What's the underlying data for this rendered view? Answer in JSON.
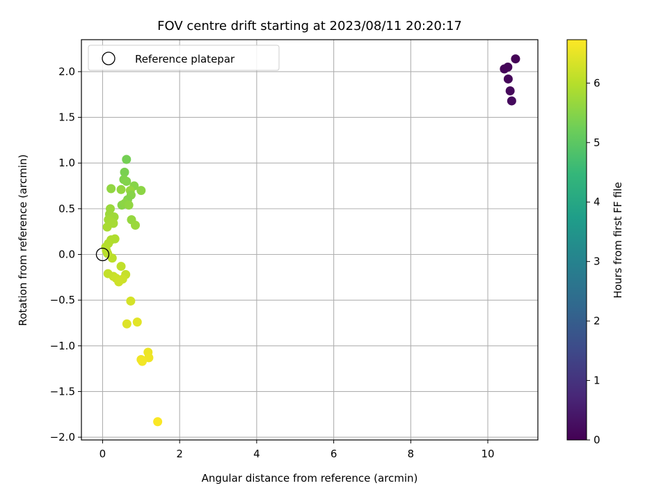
{
  "chart_data": {
    "type": "scatter",
    "title": "FOV centre drift starting at 2023/08/11 20:20:17",
    "xlabel": "Angular distance from reference (arcmin)",
    "ylabel": "Rotation from reference (arcmin)",
    "xlim": [
      -0.55,
      11.3
    ],
    "ylim": [
      -2.03,
      2.35
    ],
    "xticks": [
      0,
      2,
      4,
      6,
      8,
      10
    ],
    "yticks": [
      -2.0,
      -1.5,
      -1.0,
      -0.5,
      0.0,
      0.5,
      1.0,
      1.5,
      2.0
    ],
    "xtick_labels": [
      "0",
      "2",
      "4",
      "6",
      "8",
      "10"
    ],
    "ytick_labels": [
      "−2.0",
      "−1.5",
      "−1.0",
      "−0.5",
      "0.0",
      "0.5",
      "1.0",
      "1.5",
      "2.0"
    ],
    "grid": true,
    "legend": {
      "position": "top-left",
      "label": "Reference platepar"
    },
    "reference_point": {
      "x": 0,
      "y": 0
    },
    "colorbar": {
      "label": "Hours from first FF file",
      "min": 0,
      "max": 6.73,
      "ticks": [
        0,
        1,
        2,
        3,
        4,
        5,
        6
      ],
      "tick_labels": [
        "0",
        "1",
        "2",
        "3",
        "4",
        "5",
        "6"
      ],
      "colormap": "viridis",
      "colormap_stops": [
        "#440154",
        "#482878",
        "#3e4989",
        "#31688e",
        "#26828e",
        "#1f9e89",
        "#35b779",
        "#6ece58",
        "#b5de2b",
        "#fde725"
      ]
    },
    "points": [
      {
        "x": 10.72,
        "y": 2.14,
        "h": 0.05
      },
      {
        "x": 10.43,
        "y": 2.03,
        "h": 0.08
      },
      {
        "x": 10.52,
        "y": 2.05,
        "h": 0.1
      },
      {
        "x": 10.53,
        "y": 1.92,
        "h": 0.12
      },
      {
        "x": 10.58,
        "y": 1.79,
        "h": 0.15
      },
      {
        "x": 10.62,
        "y": 1.68,
        "h": 0.18
      },
      {
        "x": 0.62,
        "y": 1.04,
        "h": 5.3
      },
      {
        "x": 0.57,
        "y": 0.9,
        "h": 5.35
      },
      {
        "x": 0.55,
        "y": 0.82,
        "h": 5.4
      },
      {
        "x": 0.62,
        "y": 0.8,
        "h": 5.45
      },
      {
        "x": 0.82,
        "y": 0.75,
        "h": 5.5
      },
      {
        "x": 1.0,
        "y": 0.7,
        "h": 5.55
      },
      {
        "x": 0.22,
        "y": 0.72,
        "h": 5.6
      },
      {
        "x": 0.48,
        "y": 0.71,
        "h": 5.62
      },
      {
        "x": 0.72,
        "y": 0.7,
        "h": 5.65
      },
      {
        "x": 0.74,
        "y": 0.65,
        "h": 5.5
      },
      {
        "x": 0.65,
        "y": 0.6,
        "h": 5.45
      },
      {
        "x": 0.5,
        "y": 0.54,
        "h": 5.5
      },
      {
        "x": 0.58,
        "y": 0.56,
        "h": 5.55
      },
      {
        "x": 0.68,
        "y": 0.54,
        "h": 5.6
      },
      {
        "x": 0.2,
        "y": 0.5,
        "h": 5.7
      },
      {
        "x": 0.18,
        "y": 0.44,
        "h": 5.72
      },
      {
        "x": 0.3,
        "y": 0.41,
        "h": 5.75
      },
      {
        "x": 0.15,
        "y": 0.38,
        "h": 5.78
      },
      {
        "x": 0.75,
        "y": 0.38,
        "h": 5.65
      },
      {
        "x": 0.22,
        "y": 0.36,
        "h": 5.8
      },
      {
        "x": 0.28,
        "y": 0.34,
        "h": 5.82
      },
      {
        "x": 0.12,
        "y": 0.3,
        "h": 5.85
      },
      {
        "x": 0.85,
        "y": 0.32,
        "h": 5.7
      },
      {
        "x": 0.22,
        "y": 0.16,
        "h": 5.9
      },
      {
        "x": 0.32,
        "y": 0.17,
        "h": 5.92
      },
      {
        "x": 0.15,
        "y": 0.12,
        "h": 5.95
      },
      {
        "x": 0.08,
        "y": 0.08,
        "h": 5.98
      },
      {
        "x": 0.1,
        "y": 0.04,
        "h": 6.0
      },
      {
        "x": 0.13,
        "y": 0.01,
        "h": 6.02
      },
      {
        "x": 0.25,
        "y": -0.04,
        "h": 6.05
      },
      {
        "x": 0.48,
        "y": -0.13,
        "h": 6.1
      },
      {
        "x": 0.14,
        "y": -0.21,
        "h": 6.12
      },
      {
        "x": 0.6,
        "y": -0.22,
        "h": 6.15
      },
      {
        "x": 0.28,
        "y": -0.24,
        "h": 6.17
      },
      {
        "x": 0.35,
        "y": -0.26,
        "h": 6.2
      },
      {
        "x": 0.52,
        "y": -0.27,
        "h": 6.22
      },
      {
        "x": 0.42,
        "y": -0.3,
        "h": 6.24
      },
      {
        "x": 0.73,
        "y": -0.51,
        "h": 6.3
      },
      {
        "x": 0.63,
        "y": -0.76,
        "h": 6.4
      },
      {
        "x": 0.9,
        "y": -0.74,
        "h": 6.45
      },
      {
        "x": 1.18,
        "y": -1.07,
        "h": 6.55
      },
      {
        "x": 1.0,
        "y": -1.15,
        "h": 6.6
      },
      {
        "x": 1.2,
        "y": -1.13,
        "h": 6.58
      },
      {
        "x": 1.03,
        "y": -1.17,
        "h": 6.62
      },
      {
        "x": 1.43,
        "y": -1.83,
        "h": 6.7
      }
    ]
  }
}
